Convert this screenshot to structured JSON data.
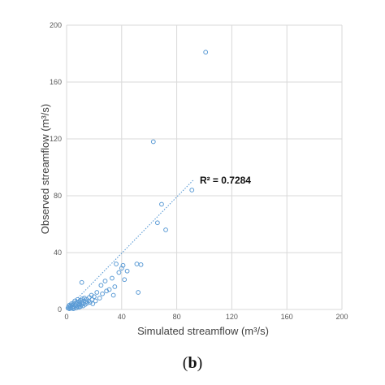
{
  "panel_label": {
    "open": "(",
    "letter": "b",
    "close": ")"
  },
  "chart_data": {
    "type": "scatter",
    "xlabel": "Simulated streamflow (m³/s)",
    "ylabel": "Observed streamflow (m³/s)",
    "xlim": [
      0,
      200
    ],
    "ylim": [
      0,
      200
    ],
    "x_ticks": [
      0,
      40,
      80,
      120,
      160,
      200
    ],
    "y_ticks": [
      0,
      40,
      80,
      120,
      160,
      200
    ],
    "x_tick_labels": [
      "0",
      "40",
      "80",
      "120",
      "160",
      "200"
    ],
    "y_tick_labels": [
      "0",
      "40",
      "80",
      "120",
      "160",
      "200"
    ],
    "grid": true,
    "marker_color": "#5b9bd5",
    "trendline": {
      "style": "dotted",
      "color": "#5b9bd5",
      "x_range": [
        0,
        92
      ],
      "y_range": [
        0,
        91
      ],
      "r2_label": "R² = 0.7284"
    },
    "points": [
      [
        1,
        1
      ],
      [
        1.5,
        2
      ],
      [
        2,
        0.5
      ],
      [
        2,
        3
      ],
      [
        2.5,
        1.5
      ],
      [
        3,
        2.5
      ],
      [
        3,
        0.8
      ],
      [
        3.5,
        4
      ],
      [
        4,
        1
      ],
      [
        4,
        3
      ],
      [
        4.5,
        2
      ],
      [
        5,
        0.5
      ],
      [
        5,
        4.5
      ],
      [
        5.5,
        1.5
      ],
      [
        6,
        3
      ],
      [
        6,
        6
      ],
      [
        6.5,
        2.5
      ],
      [
        7,
        1
      ],
      [
        7,
        4
      ],
      [
        7.5,
        5
      ],
      [
        8,
        2
      ],
      [
        8,
        7
      ],
      [
        8.5,
        3.5
      ],
      [
        9,
        1.5
      ],
      [
        9,
        5.5
      ],
      [
        9.5,
        4
      ],
      [
        10,
        2
      ],
      [
        10,
        6.5
      ],
      [
        10.5,
        3
      ],
      [
        11,
        19
      ],
      [
        11,
        5
      ],
      [
        11.5,
        7.5
      ],
      [
        12,
        4
      ],
      [
        12,
        2.5
      ],
      [
        12.5,
        6
      ],
      [
        13,
        8
      ],
      [
        13.5,
        3.5
      ],
      [
        14,
        5.5
      ],
      [
        14.5,
        7
      ],
      [
        15,
        4.5
      ],
      [
        16,
        6
      ],
      [
        16.5,
        8.5
      ],
      [
        17,
        5
      ],
      [
        18,
        10
      ],
      [
        18.5,
        7
      ],
      [
        19,
        4
      ],
      [
        20,
        9
      ],
      [
        21,
        6
      ],
      [
        22,
        12
      ],
      [
        24,
        8
      ],
      [
        25,
        17
      ],
      [
        26,
        11
      ],
      [
        28,
        20
      ],
      [
        29,
        13
      ],
      [
        31,
        14
      ],
      [
        33,
        22
      ],
      [
        34,
        10
      ],
      [
        35,
        16
      ],
      [
        36,
        32
      ],
      [
        38,
        26
      ],
      [
        40,
        29
      ],
      [
        41,
        31
      ],
      [
        42,
        21
      ],
      [
        44,
        27
      ],
      [
        51,
        32
      ],
      [
        52,
        12
      ],
      [
        54,
        31.5
      ],
      [
        63,
        118
      ],
      [
        66,
        61
      ],
      [
        69,
        74
      ],
      [
        72,
        56
      ],
      [
        91,
        84
      ],
      [
        101,
        181
      ]
    ]
  }
}
